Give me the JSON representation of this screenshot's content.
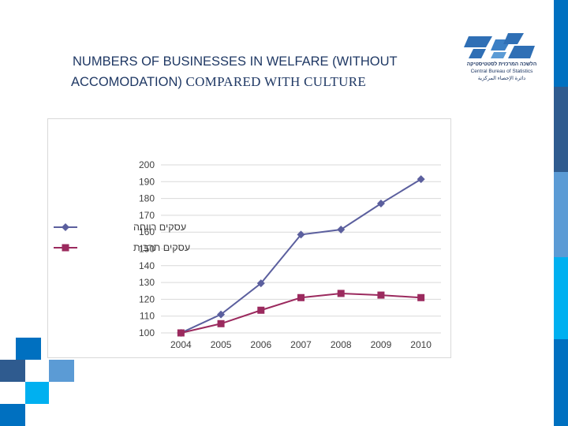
{
  "title": {
    "line1": "NUMBERS OF BUSINESSES IN WELFARE (WITHOUT",
    "line2_a": "ACCOMODATION) ",
    "line2_b": "COMPARED WITH CULTURE"
  },
  "logo": {
    "hebrew": "הלשכה המרכזית לסטטיסטיקה",
    "english": "Central Bureau of Statistics",
    "arabic": "دائرة الإحصاء المركزية"
  },
  "colors": {
    "welfare": "#5b5f9e",
    "culture": "#9b2a5e",
    "grid": "#d9d9d9",
    "brand_dark": "#2f5b8f",
    "brand_blue": "#0070c0",
    "brand_light": "#00b0f0"
  },
  "chart_data": {
    "type": "line",
    "categories": [
      "2004",
      "2005",
      "2006",
      "2007",
      "2008",
      "2009",
      "2010"
    ],
    "ylim": [
      100,
      200
    ],
    "yticks": [
      100,
      110,
      120,
      130,
      140,
      150,
      160,
      170,
      180,
      190,
      200
    ],
    "series": [
      {
        "name": "עסקים רווחה",
        "values": [
          100,
          111,
          129.5,
          158.5,
          161.5,
          177,
          191.5
        ],
        "marker": "diamond"
      },
      {
        "name": "עסקים תרבות",
        "values": [
          100,
          105.5,
          113.5,
          121,
          123.5,
          122.5,
          121
        ],
        "marker": "square"
      }
    ],
    "legend_position": "left",
    "grid": true
  }
}
